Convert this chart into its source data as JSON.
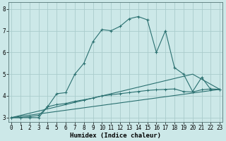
{
  "xlabel": "Humidex (Indice chaleur)",
  "bg_color": "#cce8e8",
  "grid_color": "#aacccc",
  "line_color": "#2a7070",
  "line1_x": [
    0,
    1,
    2,
    3,
    4,
    5,
    6,
    7,
    8,
    9,
    10,
    11,
    12,
    13,
    14,
    15,
    16,
    17,
    18,
    19,
    20,
    21,
    22,
    23
  ],
  "line1_y": [
    3.0,
    3.0,
    3.0,
    3.0,
    3.5,
    4.1,
    4.15,
    5.0,
    5.5,
    6.5,
    7.05,
    7.0,
    7.2,
    7.55,
    7.65,
    7.5,
    6.0,
    7.0,
    5.3,
    5.0,
    4.2,
    4.85,
    4.3,
    4.3
  ],
  "line2_x": [
    0,
    1,
    2,
    3,
    4,
    5,
    6,
    7,
    8,
    9,
    10,
    11,
    12,
    13,
    14,
    15,
    16,
    17,
    18,
    19,
    20,
    21,
    22,
    23
  ],
  "line2_y": [
    3.0,
    3.0,
    3.05,
    3.1,
    3.5,
    3.6,
    3.65,
    3.75,
    3.82,
    3.9,
    4.0,
    4.05,
    4.1,
    4.15,
    4.2,
    4.25,
    4.28,
    4.3,
    4.32,
    4.2,
    4.18,
    4.28,
    4.32,
    4.3
  ],
  "line3_x": [
    0,
    23
  ],
  "line3_y": [
    3.0,
    4.3
  ],
  "line4_x": [
    0,
    20,
    23
  ],
  "line4_y": [
    3.0,
    5.0,
    4.3
  ],
  "ylim": [
    2.8,
    8.3
  ],
  "xlim": [
    -0.3,
    23.3
  ],
  "yticks": [
    3,
    4,
    5,
    6,
    7,
    8
  ],
  "xticks": [
    0,
    1,
    2,
    3,
    4,
    5,
    6,
    7,
    8,
    9,
    10,
    11,
    12,
    13,
    14,
    15,
    16,
    17,
    18,
    19,
    20,
    21,
    22,
    23
  ],
  "tick_fontsize": 5.5,
  "xlabel_fontsize": 6.5
}
